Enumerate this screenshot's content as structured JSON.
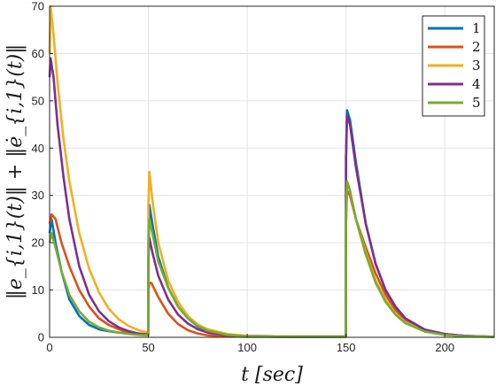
{
  "chart_data": {
    "type": "line",
    "xlabel": "t [sec]",
    "ylabel": "‖e_{i,1}(t)‖ + ‖ė_{i,1}(t)‖",
    "xlim": [
      0,
      225
    ],
    "ylim": [
      0,
      70
    ],
    "xticks": [
      0,
      50,
      100,
      150,
      200
    ],
    "yticks": [
      0,
      10,
      20,
      30,
      40,
      50,
      60,
      70
    ],
    "grid": true,
    "legend_position": "top-right",
    "series": [
      {
        "name": "1",
        "color": "#0072BD",
        "x": [
          0,
          1,
          3,
          6,
          10,
          15,
          20,
          25,
          30,
          35,
          40,
          45,
          49.9,
          50,
          50.5,
          52,
          55,
          60,
          65,
          70,
          75,
          80,
          90,
          100,
          120,
          149.9,
          150,
          150.5,
          152,
          155,
          160,
          165,
          170,
          175,
          180,
          190,
          200,
          210,
          225
        ],
        "y": [
          22,
          25,
          20,
          14,
          8,
          4.5,
          2.6,
          1.7,
          1.3,
          1.0,
          0.8,
          0.7,
          0.6,
          16,
          28,
          24,
          17,
          10.5,
          6.5,
          4,
          2.3,
          1.2,
          0.5,
          0.3,
          0.2,
          0.2,
          38,
          48,
          46,
          37,
          24,
          15.5,
          10,
          6.5,
          4,
          1.6,
          0.7,
          0.3,
          0.1
        ]
      },
      {
        "name": "2",
        "color": "#D95319",
        "x": [
          0,
          1,
          3,
          6,
          10,
          15,
          20,
          25,
          30,
          35,
          40,
          45,
          49.9,
          50,
          50.5,
          51.5,
          55,
          60,
          65,
          70,
          75,
          80,
          90,
          100,
          120,
          149.9,
          150,
          150.5,
          152,
          155,
          160,
          165,
          170,
          175,
          180,
          190,
          200,
          210,
          225
        ],
        "y": [
          24,
          26,
          25,
          20,
          15,
          10,
          6.5,
          4,
          2.6,
          1.7,
          1.0,
          0.6,
          0.4,
          10,
          11.5,
          11.5,
          8.5,
          5,
          2.8,
          1.5,
          0.8,
          0.4,
          0.2,
          0.1,
          0.1,
          0.1,
          24,
          31,
          30,
          25,
          19,
          13.5,
          9,
          5.8,
          3.6,
          1.4,
          0.6,
          0.3,
          0.1
        ]
      },
      {
        "name": "3",
        "color": "#EDB120",
        "x": [
          0,
          0.5,
          2,
          4,
          7,
          10,
          15,
          20,
          25,
          30,
          35,
          40,
          45,
          49.9,
          50,
          50.5,
          52,
          55,
          60,
          65,
          70,
          75,
          80,
          90,
          100,
          120,
          149.9,
          150,
          150.5,
          152,
          155,
          160,
          165,
          170,
          175,
          180,
          190,
          200,
          210,
          225
        ],
        "y": [
          60,
          70,
          64,
          54,
          42,
          33,
          22,
          14.5,
          9.5,
          6,
          3.8,
          2.4,
          1.5,
          1.0,
          28,
          35,
          29,
          20,
          12,
          7.5,
          4.5,
          2.7,
          1.7,
          0.7,
          0.3,
          0.2,
          0.2,
          25,
          33,
          31,
          25,
          18,
          12,
          8,
          5,
          3.2,
          1.3,
          0.6,
          0.3,
          0.1
        ]
      },
      {
        "name": "4",
        "color": "#7E2F8E",
        "x": [
          0,
          0.5,
          2,
          4,
          7,
          10,
          15,
          20,
          25,
          30,
          35,
          40,
          45,
          49.9,
          50,
          50.5,
          52,
          55,
          60,
          65,
          70,
          75,
          80,
          90,
          100,
          120,
          149.9,
          150,
          150.5,
          152,
          155,
          160,
          165,
          170,
          175,
          180,
          190,
          200,
          210,
          225
        ],
        "y": [
          55,
          59,
          55,
          45,
          34,
          25,
          15,
          9,
          5.5,
          3.4,
          2.1,
          1.3,
          0.8,
          0.6,
          17,
          21,
          18,
          13,
          8,
          4.8,
          2.9,
          1.7,
          1.0,
          0.4,
          0.2,
          0.1,
          0.1,
          38,
          47,
          45,
          36,
          24,
          15.5,
          10,
          6.5,
          4,
          1.6,
          0.7,
          0.3,
          0.1
        ]
      },
      {
        "name": "5",
        "color": "#77AC30",
        "x": [
          0,
          1,
          3,
          6,
          10,
          15,
          20,
          25,
          30,
          35,
          40,
          45,
          49.9,
          50,
          50.5,
          52,
          55,
          60,
          65,
          70,
          75,
          80,
          90,
          100,
          120,
          149.9,
          150,
          150.5,
          152,
          155,
          160,
          165,
          170,
          175,
          180,
          190,
          200,
          210,
          225
        ],
        "y": [
          20,
          22,
          19,
          14,
          9,
          5.5,
          3.3,
          2.1,
          1.4,
          1.0,
          0.7,
          0.5,
          0.4,
          20,
          25,
          22,
          16,
          10.5,
          6.5,
          4,
          2.4,
          1.4,
          0.5,
          0.2,
          0.1,
          0.1,
          26,
          33,
          31,
          25,
          17.5,
          11.5,
          7.5,
          4.8,
          3,
          1.2,
          0.5,
          0.2,
          0.1
        ]
      }
    ]
  }
}
